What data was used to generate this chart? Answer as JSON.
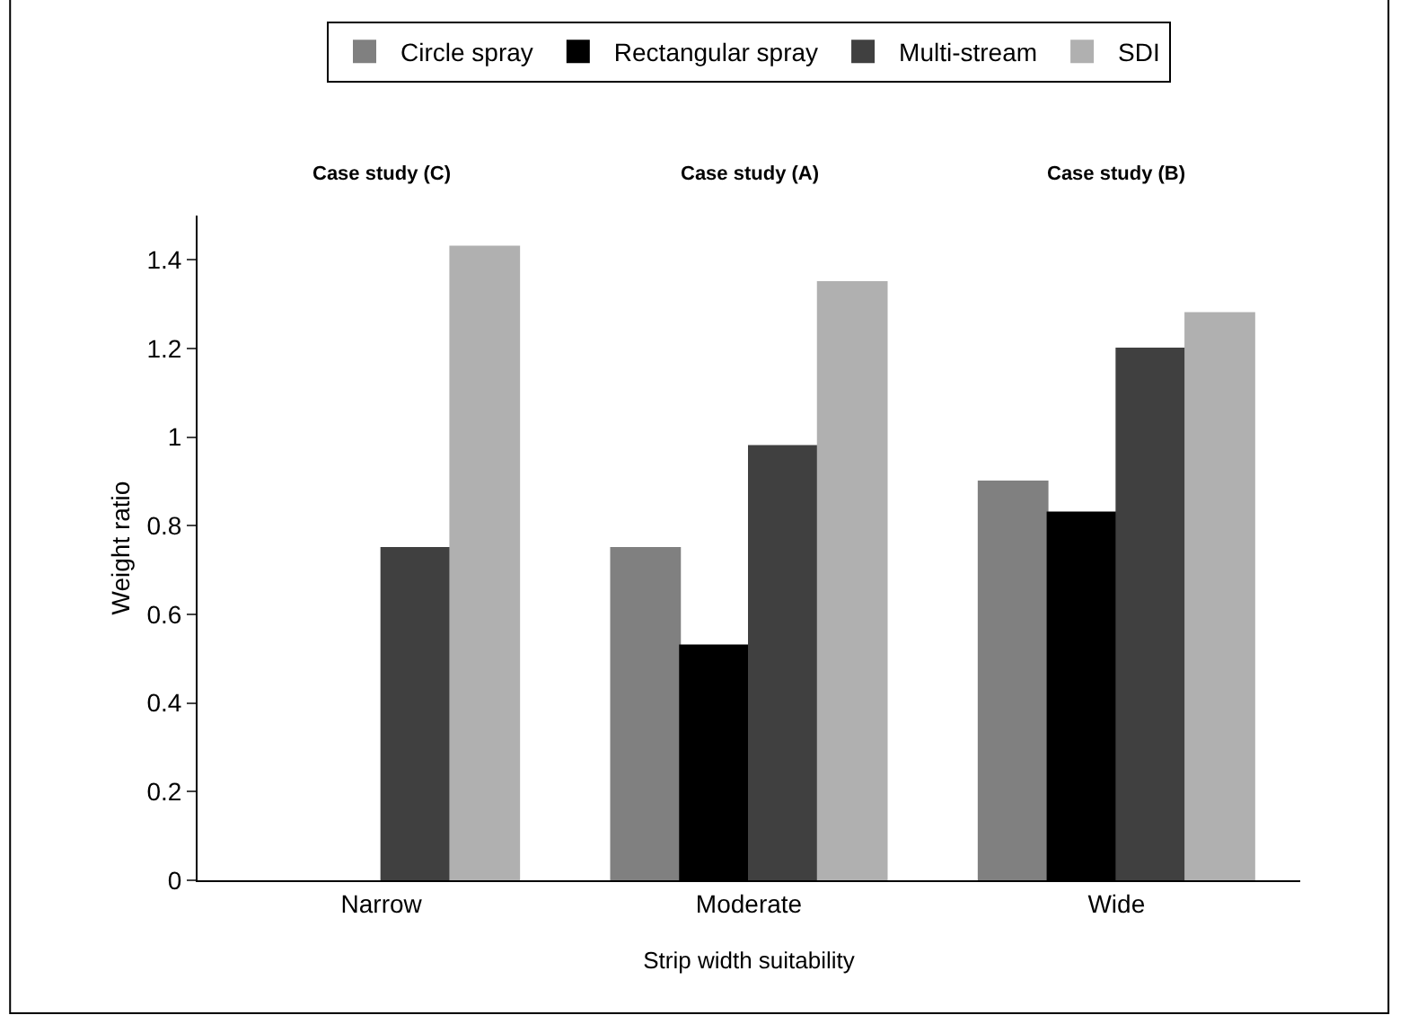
{
  "chart_data": {
    "type": "bar",
    "xlabel": "Strip width suitability",
    "ylabel": "Weight ratio",
    "categories": [
      "Narrow",
      "Moderate",
      "Wide"
    ],
    "series": [
      {
        "name": "Circle spray",
        "color": "#808080",
        "values": [
          null,
          0.75,
          0.9
        ]
      },
      {
        "name": "Rectangular spray",
        "color": "#000000",
        "values": [
          null,
          0.53,
          0.83
        ]
      },
      {
        "name": "Multi-stream",
        "color": "#404040",
        "values": [
          0.75,
          0.98,
          1.2
        ]
      },
      {
        "name": "SDI",
        "color": "#b0b0b0",
        "values": [
          1.43,
          1.35,
          1.28
        ]
      }
    ],
    "ylim": [
      0,
      1.5
    ],
    "yticks": [
      0,
      0.2,
      0.4,
      0.6,
      0.8,
      1,
      1.2,
      1.4
    ],
    "grid": false,
    "legend": "top",
    "annotations": [
      "Case study (C)",
      "Case study (A)",
      "Case study (B)"
    ]
  }
}
